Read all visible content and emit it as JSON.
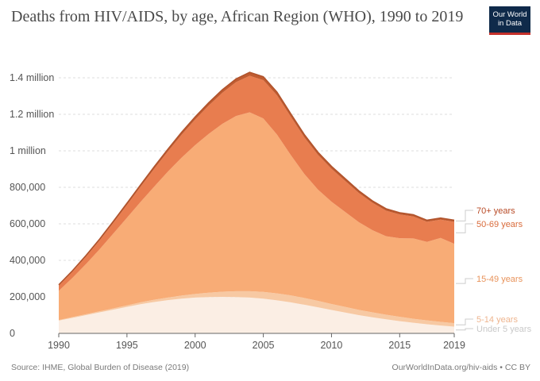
{
  "title": "Deaths from HIV/AIDS, by age, African Region (WHO), 1990 to 2019",
  "logo": {
    "line1": "Our World",
    "line2": "in Data"
  },
  "footer": {
    "source": "Source: IHME, Global Burden of Disease (2019)",
    "url": "OurWorldInData.org/hiv-aids • CC BY"
  },
  "colors": {
    "grid": "#dddddd",
    "axis": "#666666",
    "tick_text": "#555555"
  },
  "chart_data": {
    "type": "area",
    "stacked": true,
    "x": [
      1990,
      1991,
      1992,
      1993,
      1994,
      1995,
      1996,
      1997,
      1998,
      1999,
      2000,
      2001,
      2002,
      2003,
      2004,
      2005,
      2006,
      2007,
      2008,
      2009,
      2010,
      2011,
      2012,
      2013,
      2014,
      2015,
      2016,
      2017,
      2018,
      2019
    ],
    "xlim": [
      1990,
      2019
    ],
    "ylim": [
      0,
      1500000
    ],
    "xticks": [
      "1990",
      "1995",
      "2000",
      "2005",
      "2010",
      "2015",
      "2019"
    ],
    "yticks": [
      {
        "value": 0,
        "label": "0"
      },
      {
        "value": 200000,
        "label": "200,000"
      },
      {
        "value": 400000,
        "label": "400,000"
      },
      {
        "value": 600000,
        "label": "600,000"
      },
      {
        "value": 800000,
        "label": "800,000"
      },
      {
        "value": 1000000,
        "label": "1 million"
      },
      {
        "value": 1200000,
        "label": "1.2 million"
      },
      {
        "value": 1400000,
        "label": "1.4 million"
      }
    ],
    "grid": true,
    "legend": "inline-right",
    "series": [
      {
        "name": "Under 5 years",
        "color": "#fbeee4",
        "label_color": "#c9c9c9",
        "values": [
          70000,
          85000,
          100000,
          115000,
          130000,
          145000,
          160000,
          172000,
          182000,
          190000,
          196000,
          199000,
          200000,
          199000,
          196000,
          190000,
          181000,
          170000,
          157000,
          143000,
          128000,
          114000,
          100000,
          88000,
          77000,
          67000,
          58000,
          50000,
          43000,
          37000
        ]
      },
      {
        "name": "5-14 years",
        "color": "#f7c9a3",
        "label_color": "#eeb58f",
        "values": [
          3000,
          4000,
          5000,
          6000,
          7000,
          8000,
          10000,
          12000,
          14000,
          17000,
          20000,
          24000,
          28000,
          32000,
          35000,
          37000,
          38000,
          38000,
          37000,
          35000,
          33000,
          31000,
          29000,
          27000,
          25000,
          24000,
          22000,
          21000,
          20000,
          19000
        ]
      },
      {
        "name": "15-49 years",
        "color": "#f8ac76",
        "label_color": "#e8935b",
        "values": [
          160000,
          215000,
          275000,
          340000,
          410000,
          480000,
          550000,
          620000,
          690000,
          755000,
          815000,
          870000,
          920000,
          960000,
          980000,
          950000,
          870000,
          770000,
          680000,
          610000,
          560000,
          520000,
          480000,
          450000,
          430000,
          430000,
          440000,
          430000,
          460000,
          435000
        ]
      },
      {
        "name": "50-69 years",
        "color": "#e87d4f",
        "label_color": "#d96b3b",
        "values": [
          28000,
          33000,
          40000,
          48000,
          58000,
          70000,
          83000,
          97000,
          110000,
          125000,
          140000,
          155000,
          170000,
          185000,
          200000,
          210000,
          215000,
          210000,
          200000,
          190000,
          180000,
          170000,
          160000,
          150000,
          140000,
          130000,
          120000,
          110000,
          100000,
          120000
        ]
      },
      {
        "name": "70+ years",
        "color": "#c05c31",
        "label_color": "#b84b27",
        "values": [
          5000,
          6000,
          7000,
          8000,
          9000,
          10000,
          11000,
          12000,
          13000,
          14000,
          15000,
          16000,
          17000,
          18000,
          19000,
          19000,
          18000,
          17000,
          16000,
          15000,
          14000,
          13000,
          12000,
          11000,
          11000,
          10000,
          10000,
          9000,
          9000,
          9000
        ]
      }
    ]
  }
}
